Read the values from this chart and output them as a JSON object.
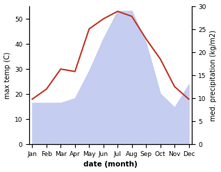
{
  "months": [
    "Jan",
    "Feb",
    "Mar",
    "Apr",
    "May",
    "Jun",
    "Jul",
    "Aug",
    "Sep",
    "Oct",
    "Nov",
    "Dec"
  ],
  "temp": [
    18,
    22,
    30,
    29,
    46,
    50,
    53,
    51,
    42,
    34,
    23,
    18
  ],
  "precip": [
    9,
    9,
    9,
    10,
    16,
    23,
    29,
    29,
    22,
    11,
    8,
    13
  ],
  "temp_color": "#c0392b",
  "precip_fill_color": "#c5cdf0",
  "temp_ylim": [
    0,
    55
  ],
  "precip_ylim": [
    0,
    30
  ],
  "temp_yticks": [
    0,
    10,
    20,
    30,
    40,
    50
  ],
  "precip_yticks": [
    0,
    5,
    10,
    15,
    20,
    25,
    30
  ],
  "ylabel_left": "max temp (C)",
  "ylabel_right": "med. precipitation (kg/m2)",
  "xlabel": "date (month)",
  "background_color": "#ffffff",
  "fig_width": 3.18,
  "fig_height": 2.47
}
